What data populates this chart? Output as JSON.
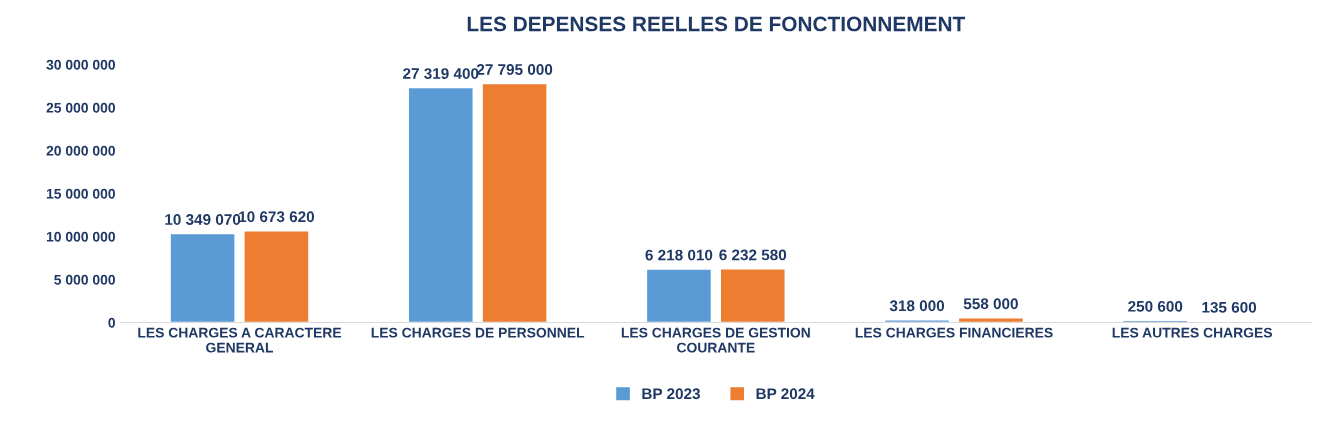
{
  "chart_data": {
    "type": "bar",
    "title": "LES DEPENSES REELLES DE FONCTIONNEMENT",
    "categories": [
      "LES CHARGES A CARACTERE GENERAL",
      "LES CHARGES DE PERSONNEL",
      "LES CHARGES DE GESTION COURANTE",
      "LES CHARGES FINANCIERES",
      "LES AUTRES CHARGES"
    ],
    "series": [
      {
        "name": "BP 2023",
        "color": "#5b9bd5",
        "values": [
          10349070,
          27319400,
          6218010,
          318000,
          250600
        ],
        "value_labels": [
          "10 349 070",
          "27 319 400",
          "6 218 010",
          "318 000",
          "250 600"
        ]
      },
      {
        "name": "BP 2024",
        "color": "#ed7d31",
        "values": [
          10673620,
          27795000,
          6232580,
          558000,
          135600
        ],
        "value_labels": [
          "10 673 620",
          "27 795 000",
          "6 232 580",
          "558 000",
          "135 600"
        ]
      }
    ],
    "ylim": [
      0,
      30000000
    ],
    "yticks": [
      {
        "value": 0,
        "label": "0"
      },
      {
        "value": 5000000,
        "label": "5 000 000"
      },
      {
        "value": 10000000,
        "label": "10 000 000"
      },
      {
        "value": 15000000,
        "label": "15 000 000"
      },
      {
        "value": 20000000,
        "label": "20 000 000"
      },
      {
        "value": 25000000,
        "label": "25 000 000"
      },
      {
        "value": 30000000,
        "label": "30 000 000"
      }
    ],
    "grid": false,
    "legend": "bottom"
  }
}
